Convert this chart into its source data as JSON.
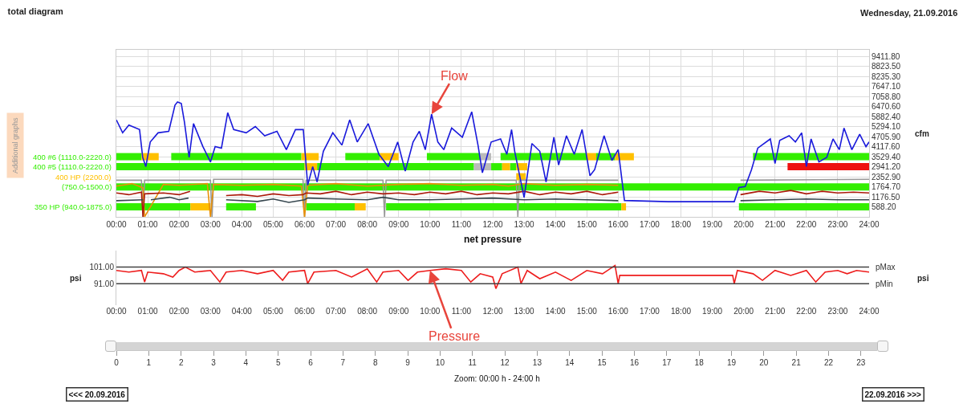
{
  "chart_data": [
    {
      "type": "line",
      "title": "total diagram",
      "subtitle": "Wednesday, 21.09.2016",
      "ylabel": "cfm",
      "annotations": [
        "Additional graphs",
        {
          "text": "Flow",
          "x": 10.05,
          "y": 6020
        }
      ],
      "xlim": [
        0,
        24
      ],
      "xticks": [
        {
          "value": 0,
          "label": "00:00"
        },
        {
          "value": 1,
          "label": "01:00"
        },
        {
          "value": 2,
          "label": "02:00"
        },
        {
          "value": 3,
          "label": "03:00"
        },
        {
          "value": 4,
          "label": "04:00"
        },
        {
          "value": 5,
          "label": "05:00"
        },
        {
          "value": 6,
          "label": "06:00"
        },
        {
          "value": 7,
          "label": "07:00"
        },
        {
          "value": 8,
          "label": "08:00"
        },
        {
          "value": 9,
          "label": "09:00"
        },
        {
          "value": 10,
          "label": "10:00"
        },
        {
          "value": 11,
          "label": "11:00"
        },
        {
          "value": 12,
          "label": "12:00"
        },
        {
          "value": 13,
          "label": "13:00"
        },
        {
          "value": 14,
          "label": "14:00"
        },
        {
          "value": 15,
          "label": "15:00"
        },
        {
          "value": 16,
          "label": "16:00"
        },
        {
          "value": 17,
          "label": "17:00"
        },
        {
          "value": 18,
          "label": "18:00"
        },
        {
          "value": 19,
          "label": "19:00"
        },
        {
          "value": 20,
          "label": "20:00"
        },
        {
          "value": 21,
          "label": "21:00"
        },
        {
          "value": 22,
          "label": "22:00"
        },
        {
          "value": 23,
          "label": "23:00"
        },
        {
          "value": 24,
          "label": "24:00"
        }
      ],
      "ylim": [
        0,
        9800
      ],
      "yticks": [
        {
          "value": 588.2,
          "label": "588.20"
        },
        {
          "value": 1176.5,
          "label": "1176.50"
        },
        {
          "value": 1764.7,
          "label": "1764.70"
        },
        {
          "value": 2352.9,
          "label": "2352.90"
        },
        {
          "value": 2941.2,
          "label": "2941.20"
        },
        {
          "value": 3529.4,
          "label": "3529.40"
        },
        {
          "value": 4117.6,
          "label": "4117.60"
        },
        {
          "value": 4705.9,
          "label": "4705.90"
        },
        {
          "value": 5294.1,
          "label": "5294.10"
        },
        {
          "value": 5882.4,
          "label": "5882.40"
        },
        {
          "value": 6470.6,
          "label": "6470.60"
        },
        {
          "value": 7058.8,
          "label": "7058.80"
        },
        {
          "value": 7647.1,
          "label": "7647.10"
        },
        {
          "value": 8235.3,
          "label": "8235.30"
        },
        {
          "value": 8823.5,
          "label": "8823.50"
        },
        {
          "value": 9411.8,
          "label": "9411.80"
        }
      ],
      "grid": true,
      "series": [
        {
          "type": "step",
          "name": "400 #6 (1110.0-2220.0)",
          "color": "#33ee00",
          "x": [
            0,
            0.8
          ],
          "values": [
            3530,
            3530
          ]
        },
        {
          "type": "step",
          "color": "#33ee00",
          "x": [
            1.75,
            5.9
          ],
          "values": [
            3530,
            3530
          ]
        },
        {
          "type": "step",
          "color": "#33ee00",
          "x": [
            7.3,
            8.4
          ],
          "values": [
            3530,
            3530
          ]
        },
        {
          "type": "step",
          "color": "#33ee00",
          "x": [
            9.9,
            11.6
          ],
          "values": [
            3530,
            3530
          ]
        },
        {
          "type": "step",
          "color": "#33ee00",
          "x": [
            12.25,
            15.0
          ],
          "values": [
            3530,
            3530
          ]
        },
        {
          "type": "step",
          "color": "#33ee00",
          "x": [
            15.3,
            15.9
          ],
          "values": [
            3530,
            3530
          ]
        },
        {
          "type": "step",
          "color": "#33ee00",
          "x": [
            20.3,
            24
          ],
          "values": [
            3530,
            3530
          ]
        },
        {
          "type": "step",
          "color": "#ffc000",
          "x": [
            0.8,
            1.35
          ],
          "values": [
            3530,
            3530
          ]
        },
        {
          "type": "step",
          "color": "#ffc000",
          "x": [
            5.9,
            6.45
          ],
          "values": [
            3530,
            3530
          ]
        },
        {
          "type": "step",
          "color": "#ffc000",
          "x": [
            8.4,
            9.0
          ],
          "values": [
            3530,
            3530
          ]
        },
        {
          "type": "step",
          "color": "#ffc000",
          "x": [
            15.0,
            15.3
          ],
          "values": [
            3530,
            3530
          ]
        },
        {
          "type": "step",
          "color": "#ffc000",
          "x": [
            15.9,
            16.5
          ],
          "values": [
            3530,
            3530
          ]
        },
        {
          "type": "step",
          "color": "#bbbbbb",
          "x": [
            11.6,
            11.95
          ],
          "values": [
            3530,
            3530
          ]
        },
        {
          "type": "step",
          "name": "400 #5 (1110.0-2220.0)",
          "color": "#33ee00",
          "x": [
            0,
            6.0
          ],
          "values": [
            2940,
            2940
          ]
        },
        {
          "type": "step",
          "color": "#33ee00",
          "x": [
            6.4,
            11.4
          ],
          "values": [
            2940,
            2940
          ]
        },
        {
          "type": "step",
          "color": "#33ee00",
          "x": [
            11.95,
            12.3
          ],
          "values": [
            2940,
            2940
          ]
        },
        {
          "type": "step",
          "color": "#33ee00",
          "x": [
            12.55,
            12.75
          ],
          "values": [
            2940,
            2940
          ]
        },
        {
          "type": "step",
          "color": "#ffc000",
          "x": [
            6.0,
            6.4
          ],
          "values": [
            2940,
            2940
          ]
        },
        {
          "type": "step",
          "color": "#ffc000",
          "x": [
            12.3,
            12.55
          ],
          "values": [
            2940,
            2940
          ]
        },
        {
          "type": "step",
          "color": "#ffc000",
          "x": [
            12.75,
            13.1
          ],
          "values": [
            2940,
            2940
          ]
        },
        {
          "type": "step",
          "color": "#bbbbbb",
          "x": [
            11.4,
            11.95
          ],
          "values": [
            2940,
            2940
          ]
        },
        {
          "type": "step",
          "color": "#ee1111",
          "x": [
            21.4,
            24
          ],
          "values": [
            2940,
            2940
          ]
        },
        {
          "type": "step",
          "name": "400 HP (2200.0)",
          "color": "#ffc000",
          "x": [
            12.75,
            13.05
          ],
          "values": [
            2350,
            2350
          ]
        },
        {
          "type": "step",
          "name": "(750.0-1500.0)",
          "color": "#33ee00",
          "x": [
            0,
            24
          ],
          "values": [
            1760,
            1760
          ]
        },
        {
          "type": "step",
          "name": "350 HP (940.0-1875.0)",
          "color": "#33ee00",
          "x": [
            0,
            2.36
          ],
          "values": [
            590,
            590
          ]
        },
        {
          "type": "step",
          "color": "#33ee00",
          "x": [
            3.5,
            4.45
          ],
          "values": [
            590,
            590
          ]
        },
        {
          "type": "step",
          "color": "#33ee00",
          "x": [
            6.05,
            7.6
          ],
          "values": [
            590,
            590
          ]
        },
        {
          "type": "step",
          "color": "#33ee00",
          "x": [
            8.6,
            16.1
          ],
          "values": [
            590,
            590
          ]
        },
        {
          "type": "step",
          "color": "#33ee00",
          "x": [
            19.85,
            24
          ],
          "values": [
            590,
            590
          ]
        },
        {
          "type": "step",
          "color": "#ffc000",
          "x": [
            2.36,
            3.0
          ],
          "values": [
            590,
            590
          ]
        },
        {
          "type": "step",
          "color": "#ffc000",
          "x": [
            7.6,
            7.95
          ],
          "values": [
            590,
            590
          ]
        },
        {
          "type": "step",
          "color": "#ffc000",
          "x": [
            16.1,
            16.25
          ],
          "values": [
            590,
            590
          ]
        },
        {
          "type": "line",
          "color": "#999999",
          "x": [
            0,
            0.8,
            0.85,
            0.9,
            3.0,
            3.05,
            3.1,
            5.95,
            6.0,
            6.05,
            8.5,
            8.55,
            8.6,
            12.75,
            12.8,
            12.85,
            16.0
          ],
          "values": [
            2150,
            2150,
            0,
            2150,
            2150,
            0,
            2200,
            2200,
            0,
            2150,
            2150,
            0,
            2150,
            2150,
            0,
            2150,
            2150
          ]
        },
        {
          "type": "line",
          "color": "#999999",
          "x": [
            19.9,
            24
          ],
          "values": [
            2150,
            2200
          ]
        },
        {
          "type": "line",
          "color": "#e8900a",
          "x": [
            0,
            0.5,
            0.85,
            0.9,
            1.5,
            2.0,
            2.9,
            3.0,
            3.1,
            4,
            5,
            5.9,
            6.0,
            6.1,
            7,
            8,
            9,
            10,
            11,
            12,
            12.5,
            13,
            14,
            15,
            16
          ],
          "values": [
            1800,
            1950,
            1700,
            0,
            1900,
            1850,
            1950,
            0,
            1900,
            1850,
            1900,
            1800,
            0,
            1850,
            1950,
            1800,
            1900,
            1950,
            1850,
            1900,
            1800,
            1950,
            1850,
            1900,
            1850
          ]
        },
        {
          "type": "line",
          "color": "#aa1a0a",
          "x": [
            0,
            0.4,
            0.8,
            0.85,
            0.9,
            1.5,
            2.0,
            2.35
          ],
          "values": [
            1400,
            1300,
            1450,
            0,
            1350,
            1400,
            1300,
            1500
          ]
        },
        {
          "type": "line",
          "color": "#aa1a0a",
          "x": [
            3.5,
            4,
            4.5,
            5,
            5.5,
            5.95,
            6.05,
            6.5,
            7,
            7.5,
            8,
            8.5,
            9,
            9.5,
            10,
            10.5,
            11,
            11.5,
            12,
            12.5,
            13,
            13.5,
            14,
            14.5,
            15,
            15.5,
            16
          ],
          "values": [
            1250,
            1300,
            1200,
            1350,
            1250,
            1300,
            1400,
            1350,
            1500,
            1300,
            1450,
            1350,
            1400,
            1300,
            1450,
            1350,
            1500,
            1300,
            1400,
            1350,
            1500,
            1300,
            1450,
            1350,
            1500,
            1300,
            1450
          ]
        },
        {
          "type": "line",
          "color": "#aa1a0a",
          "x": [
            19.9,
            20.5,
            21,
            21.5,
            22,
            22.5,
            23,
            23.5,
            24
          ],
          "values": [
            1300,
            1500,
            1400,
            1550,
            1350,
            1500,
            1400,
            1450,
            1400
          ]
        },
        {
          "type": "line",
          "color": "#37474f",
          "x": [
            0,
            0.85
          ],
          "values": [
            950,
            1000
          ]
        },
        {
          "type": "line",
          "color": "#37474f",
          "x": [
            1.1,
            1.7,
            2.0,
            2.3
          ],
          "values": [
            1000,
            1150,
            1000,
            1100
          ]
        },
        {
          "type": "line",
          "color": "#37474f",
          "x": [
            3.5,
            4.5,
            5,
            5.5,
            6.0,
            6.1,
            7,
            8,
            8.5,
            9,
            10,
            11,
            12,
            13,
            14,
            15,
            16
          ],
          "values": [
            1000,
            900,
            1050,
            850,
            1000,
            1100,
            1050,
            1000,
            1150,
            1000,
            1000,
            1050,
            1100,
            1000,
            1050,
            1000,
            950
          ]
        },
        {
          "type": "line",
          "color": "#37474f",
          "x": [
            19.9,
            21,
            22,
            23,
            24
          ],
          "values": [
            950,
            1000,
            1050,
            1000,
            1000
          ]
        },
        {
          "type": "line",
          "color": "#1a1adb",
          "x": [
            0,
            0.2,
            0.4,
            0.74,
            0.84,
            0.94,
            1.08,
            1.33,
            1.67,
            1.87,
            1.95,
            2.07,
            2.17,
            2.32,
            2.46,
            2.76,
            3.0,
            3.15,
            3.35,
            3.55,
            3.74,
            4.14,
            4.43,
            4.73,
            5.12,
            5.42,
            5.71,
            5.96,
            6.1,
            6.26,
            6.4,
            6.6,
            6.9,
            7.19,
            7.44,
            7.68,
            8.03,
            8.37,
            8.67,
            8.97,
            9.21,
            9.46,
            9.66,
            9.85,
            10.05,
            10.25,
            10.44,
            10.69,
            11.03,
            11.33,
            11.53,
            11.67,
            11.95,
            12.25,
            12.45,
            12.6,
            12.7,
            13.0,
            13.25,
            13.5,
            13.7,
            13.95,
            14.1,
            14.35,
            14.6,
            14.85,
            15.1,
            15.25,
            15.55,
            15.8,
            16.0,
            16.2,
            17.6,
            19.7,
            19.85,
            20.05,
            20.25,
            20.45,
            20.85,
            21.0,
            21.15,
            21.45,
            21.65,
            21.85,
            22.0,
            22.15,
            22.4,
            22.65,
            22.85,
            23.05,
            23.2,
            23.45,
            23.7,
            23.9,
            24
          ],
          "values": [
            5690,
            4930,
            5380,
            5120,
            3490,
            2950,
            4390,
            4930,
            5020,
            6560,
            6740,
            6650,
            5560,
            3490,
            5470,
            4120,
            3220,
            4120,
            4030,
            6110,
            5120,
            4930,
            5300,
            4760,
            5020,
            3940,
            5120,
            5120,
            1860,
            2950,
            2050,
            3850,
            4930,
            4210,
            5690,
            4390,
            5470,
            3670,
            2950,
            4390,
            2680,
            4390,
            5020,
            3940,
            6020,
            4390,
            3940,
            5210,
            4670,
            6160,
            4210,
            2590,
            4390,
            4570,
            3670,
            5120,
            3850,
            1140,
            4300,
            3850,
            2050,
            4670,
            3040,
            4760,
            3670,
            5120,
            2410,
            2770,
            4760,
            3310,
            3940,
            960,
            890,
            890,
            1720,
            1780,
            2770,
            4030,
            4570,
            3130,
            4480,
            4760,
            4390,
            4930,
            2950,
            4570,
            3220,
            3490,
            4570,
            3940,
            5210,
            3940,
            4850,
            4120,
            4390
          ]
        }
      ]
    },
    {
      "type": "line",
      "title": "net pressure",
      "ylabel": "psi",
      "y2label": "psi",
      "annotations": [
        {
          "text": "Pressure",
          "x": 10.0,
          "y": 99
        }
      ],
      "xlim": [
        0,
        24
      ],
      "xticks": [
        {
          "value": 0,
          "label": "00:00"
        },
        {
          "value": 1,
          "label": "01:00"
        },
        {
          "value": 2,
          "label": "02:00"
        },
        {
          "value": 3,
          "label": "03:00"
        },
        {
          "value": 4,
          "label": "04:00"
        },
        {
          "value": 5,
          "label": "05:00"
        },
        {
          "value": 6,
          "label": "06:00"
        },
        {
          "value": 7,
          "label": "07:00"
        },
        {
          "value": 8,
          "label": "08:00"
        },
        {
          "value": 9,
          "label": "09:00"
        },
        {
          "value": 10,
          "label": "10:00"
        },
        {
          "value": 11,
          "label": "11:00"
        },
        {
          "value": 12,
          "label": "12:00"
        },
        {
          "value": 13,
          "label": "13:00"
        },
        {
          "value": 14,
          "label": "14:00"
        },
        {
          "value": 15,
          "label": "15:00"
        },
        {
          "value": 16,
          "label": "16:00"
        },
        {
          "value": 17,
          "label": "17:00"
        },
        {
          "value": 18,
          "label": "18:00"
        },
        {
          "value": 19,
          "label": "19:00"
        },
        {
          "value": 20,
          "label": "20:00"
        },
        {
          "value": 21,
          "label": "21:00"
        },
        {
          "value": 22,
          "label": "22:00"
        },
        {
          "value": 23,
          "label": "23:00"
        },
        {
          "value": 24,
          "label": "24:00"
        }
      ],
      "ylim": [
        78,
        111
      ],
      "yticks": [
        {
          "value": 91,
          "label": "91.00"
        },
        {
          "value": 101,
          "label": "101.00"
        }
      ],
      "ref_lines": [
        {
          "axis": "y",
          "value": 101,
          "label": "pMax"
        },
        {
          "axis": "y",
          "value": 91,
          "label": "pMin"
        }
      ],
      "x": [
        0,
        0.4,
        0.8,
        0.9,
        1.0,
        1.5,
        1.8,
        2.0,
        2.2,
        2.5,
        3.0,
        3.3,
        3.5,
        4.0,
        4.5,
        5.0,
        5.3,
        5.5,
        6.0,
        6.1,
        6.3,
        7.0,
        7.5,
        8.0,
        8.3,
        8.5,
        9.0,
        9.3,
        9.6,
        10.0,
        10.5,
        11.0,
        11.3,
        11.6,
        12.0,
        12.1,
        12.3,
        12.8,
        12.9,
        13.1,
        13.5,
        14.0,
        14.5,
        15.0,
        15.5,
        15.9,
        16.0,
        16.05,
        19.65,
        19.7,
        19.8,
        20.3,
        20.6,
        21.0,
        21.5,
        22.0,
        22.3,
        22.6,
        23.0,
        23.3,
        23.6,
        24
      ],
      "series": [
        {
          "color": "#ee1c1c",
          "values": [
            99,
            98,
            99,
            92,
            98,
            97,
            95,
            99,
            101,
            98,
            99,
            92,
            98,
            99,
            97,
            99,
            93,
            98,
            99,
            91,
            98,
            99,
            95,
            100,
            92,
            98,
            99,
            93,
            98,
            99,
            100,
            99,
            92,
            97,
            95,
            88,
            97,
            101,
            91,
            99,
            94,
            98,
            93,
            99,
            97,
            102,
            91,
            96,
            96,
            91,
            99,
            97,
            93,
            99,
            96,
            99,
            92,
            98,
            99,
            97,
            99,
            98
          ]
        }
      ]
    },
    {
      "type": "bar",
      "orientation": "horizontal",
      "categories": [
        null
      ],
      "series": [
        {
          "color": "#d4d4d4",
          "values": [
            23.5
          ]
        }
      ],
      "xlim": [
        0,
        23.5
      ],
      "xticks": [
        0,
        1,
        2,
        3,
        4,
        5,
        6,
        7,
        8,
        9,
        10,
        11,
        12,
        13,
        14,
        15,
        16,
        17,
        18,
        19,
        20,
        21,
        22,
        23
      ],
      "annotations": [
        "Zoom: 00:00 h - 24:00 h",
        "<<< 20.09.2016",
        "22.09.2016 >>>"
      ]
    }
  ]
}
